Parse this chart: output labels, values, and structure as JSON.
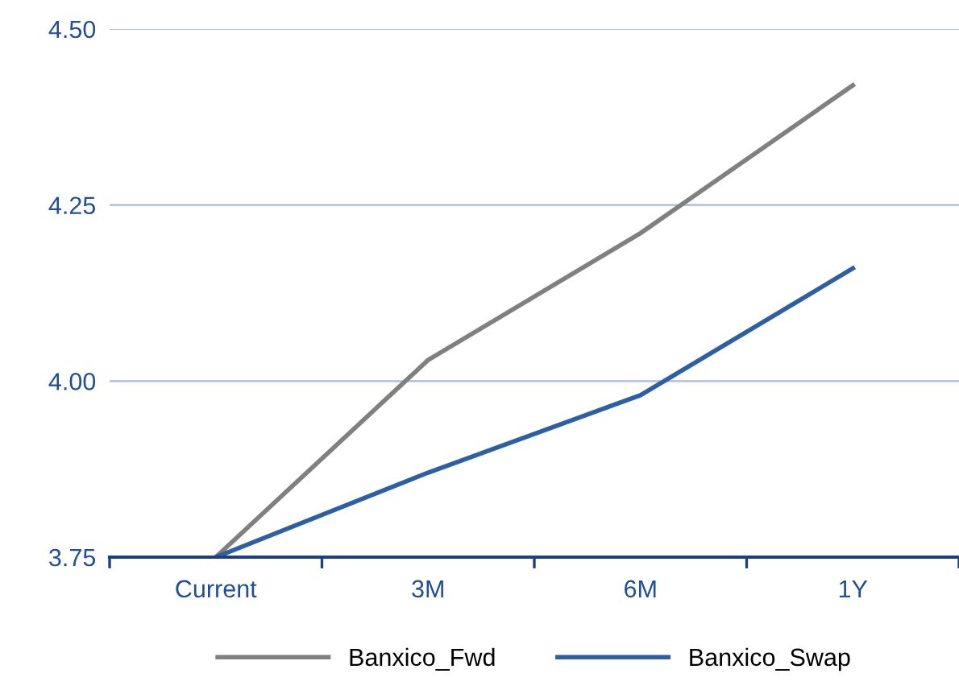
{
  "chart_data": {
    "type": "line",
    "categories": [
      "Current",
      "3M",
      "6M",
      "1Y"
    ],
    "series": [
      {
        "name": "Banxico_Fwd",
        "color": "#808080",
        "values": [
          3.75,
          4.03,
          4.21,
          4.42
        ]
      },
      {
        "name": "Banxico_Swap",
        "color": "#2e5fa3",
        "values": [
          3.75,
          3.87,
          3.98,
          4.16
        ]
      }
    ],
    "ylim": [
      3.75,
      4.5
    ],
    "yticks": [
      {
        "value": 3.75,
        "label": "3.75"
      },
      {
        "value": 4.0,
        "label": "4.00"
      },
      {
        "value": 4.25,
        "label": "4.25"
      },
      {
        "value": 4.5,
        "label": "4.50"
      }
    ],
    "grid": "y",
    "legend": "bottom",
    "marker": "none",
    "line_style": "solid"
  }
}
